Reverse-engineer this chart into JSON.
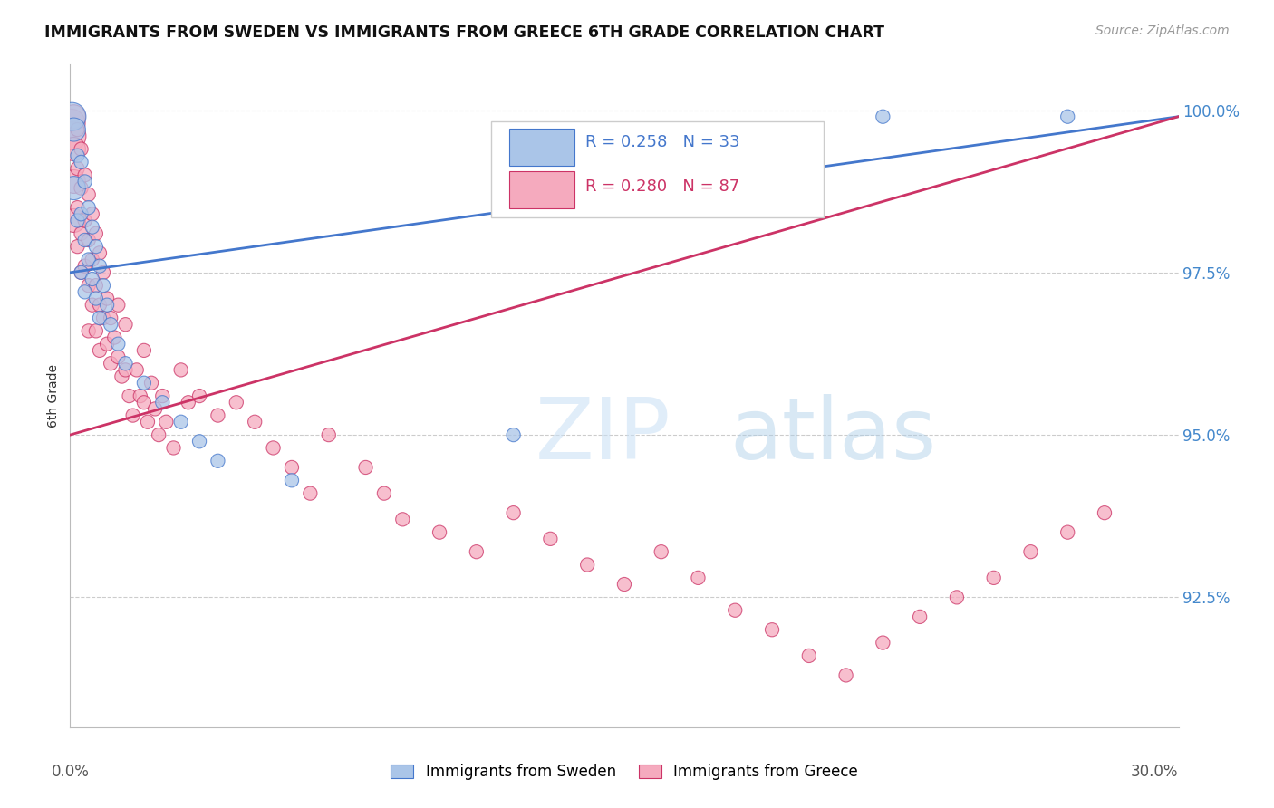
{
  "title": "IMMIGRANTS FROM SWEDEN VS IMMIGRANTS FROM GREECE 6TH GRADE CORRELATION CHART",
  "source": "Source: ZipAtlas.com",
  "ylabel": "6th Grade",
  "legend_sweden": "Immigrants from Sweden",
  "legend_greece": "Immigrants from Greece",
  "R_sweden": 0.258,
  "N_sweden": 33,
  "R_greece": 0.28,
  "N_greece": 87,
  "color_sweden": "#aac5e8",
  "color_greece": "#f5aabe",
  "line_color_sweden": "#4477cc",
  "line_color_greece": "#cc3366",
  "xmin": 0.0,
  "xmax": 0.3,
  "ymin": 0.905,
  "ymax": 1.007,
  "yticks": [
    0.925,
    0.95,
    0.975,
    1.0
  ],
  "ytick_labels": [
    "92.5%",
    "95.0%",
    "97.5%",
    "100.0%"
  ],
  "watermark_zip": "ZIP",
  "watermark_atlas": "atlas",
  "sweden_x": [
    0.0005,
    0.001,
    0.001,
    0.002,
    0.002,
    0.003,
    0.003,
    0.003,
    0.004,
    0.004,
    0.004,
    0.005,
    0.005,
    0.006,
    0.006,
    0.007,
    0.007,
    0.008,
    0.008,
    0.009,
    0.01,
    0.011,
    0.013,
    0.015,
    0.02,
    0.025,
    0.03,
    0.035,
    0.04,
    0.06,
    0.12,
    0.22,
    0.27
  ],
  "sweden_y": [
    0.999,
    0.997,
    0.988,
    0.993,
    0.983,
    0.992,
    0.984,
    0.975,
    0.989,
    0.98,
    0.972,
    0.985,
    0.977,
    0.982,
    0.974,
    0.979,
    0.971,
    0.976,
    0.968,
    0.973,
    0.97,
    0.967,
    0.964,
    0.961,
    0.958,
    0.955,
    0.952,
    0.949,
    0.946,
    0.943,
    0.95,
    0.999,
    0.999
  ],
  "greece_x": [
    0.0003,
    0.0005,
    0.001,
    0.001,
    0.001,
    0.001,
    0.002,
    0.002,
    0.002,
    0.002,
    0.003,
    0.003,
    0.003,
    0.003,
    0.004,
    0.004,
    0.004,
    0.005,
    0.005,
    0.005,
    0.005,
    0.006,
    0.006,
    0.006,
    0.007,
    0.007,
    0.007,
    0.008,
    0.008,
    0.008,
    0.009,
    0.009,
    0.01,
    0.01,
    0.011,
    0.011,
    0.012,
    0.013,
    0.013,
    0.014,
    0.015,
    0.015,
    0.016,
    0.017,
    0.018,
    0.019,
    0.02,
    0.02,
    0.021,
    0.022,
    0.023,
    0.024,
    0.025,
    0.026,
    0.028,
    0.03,
    0.032,
    0.035,
    0.04,
    0.045,
    0.05,
    0.055,
    0.06,
    0.065,
    0.07,
    0.08,
    0.085,
    0.09,
    0.1,
    0.11,
    0.12,
    0.13,
    0.14,
    0.15,
    0.16,
    0.17,
    0.18,
    0.19,
    0.2,
    0.21,
    0.22,
    0.23,
    0.24,
    0.25,
    0.26,
    0.27,
    0.28
  ],
  "greece_y": [
    0.998,
    0.996,
    0.999,
    0.994,
    0.989,
    0.983,
    0.997,
    0.991,
    0.985,
    0.979,
    0.994,
    0.988,
    0.981,
    0.975,
    0.99,
    0.983,
    0.976,
    0.987,
    0.98,
    0.973,
    0.966,
    0.984,
    0.977,
    0.97,
    0.981,
    0.973,
    0.966,
    0.978,
    0.97,
    0.963,
    0.975,
    0.968,
    0.971,
    0.964,
    0.968,
    0.961,
    0.965,
    0.97,
    0.962,
    0.959,
    0.967,
    0.96,
    0.956,
    0.953,
    0.96,
    0.956,
    0.963,
    0.955,
    0.952,
    0.958,
    0.954,
    0.95,
    0.956,
    0.952,
    0.948,
    0.96,
    0.955,
    0.956,
    0.953,
    0.955,
    0.952,
    0.948,
    0.945,
    0.941,
    0.95,
    0.945,
    0.941,
    0.937,
    0.935,
    0.932,
    0.938,
    0.934,
    0.93,
    0.927,
    0.932,
    0.928,
    0.923,
    0.92,
    0.916,
    0.913,
    0.918,
    0.922,
    0.925,
    0.928,
    0.932,
    0.935,
    0.938
  ]
}
